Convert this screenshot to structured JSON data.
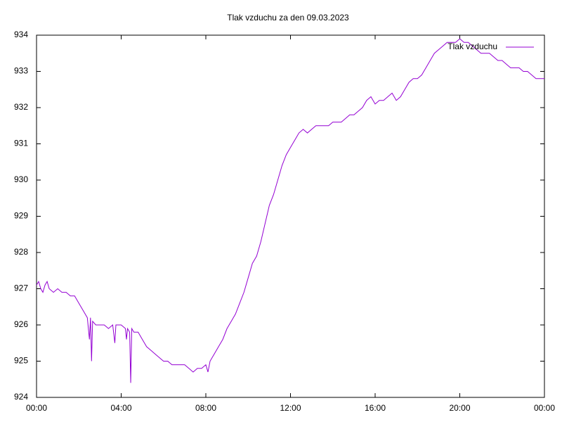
{
  "chart_data": {
    "type": "line",
    "title": "Tlak vzduchu za den 09.03.2023",
    "x": [
      0,
      0.1,
      0.2,
      0.3,
      0.4,
      0.5,
      0.6,
      0.8,
      1.0,
      1.2,
      1.4,
      1.6,
      1.8,
      2.0,
      2.2,
      2.4,
      2.5,
      2.55,
      2.6,
      2.65,
      2.8,
      3.0,
      3.2,
      3.4,
      3.6,
      3.7,
      3.75,
      4.0,
      4.2,
      4.25,
      4.3,
      4.4,
      4.45,
      4.5,
      4.6,
      4.8,
      5.0,
      5.2,
      5.4,
      5.6,
      5.8,
      6.0,
      6.2,
      6.4,
      6.6,
      6.8,
      7.0,
      7.2,
      7.4,
      7.6,
      7.8,
      8.0,
      8.1,
      8.2,
      8.4,
      8.6,
      8.8,
      9.0,
      9.2,
      9.4,
      9.6,
      9.8,
      10.0,
      10.2,
      10.4,
      10.6,
      10.8,
      11.0,
      11.2,
      11.4,
      11.6,
      11.8,
      12.0,
      12.2,
      12.4,
      12.6,
      12.8,
      13.0,
      13.2,
      13.4,
      13.6,
      13.8,
      14.0,
      14.2,
      14.4,
      14.6,
      14.8,
      15.0,
      15.2,
      15.4,
      15.6,
      15.8,
      16.0,
      16.2,
      16.4,
      16.6,
      16.8,
      17.0,
      17.2,
      17.4,
      17.6,
      17.8,
      18.0,
      18.2,
      18.4,
      18.6,
      18.8,
      19.0,
      19.2,
      19.4,
      19.6,
      19.8,
      20.0,
      20.2,
      20.4,
      20.6,
      20.8,
      21.0,
      21.2,
      21.4,
      21.6,
      21.8,
      22.0,
      22.2,
      22.4,
      22.6,
      22.8,
      23.0,
      23.2,
      23.4,
      23.6,
      23.8,
      24.0
    ],
    "series": [
      {
        "name": "Tlak vzduchu",
        "color": "#9400d3",
        "values": [
          927.1,
          927.2,
          927.0,
          926.9,
          927.1,
          927.2,
          927.0,
          926.9,
          927.0,
          926.9,
          926.9,
          926.8,
          926.8,
          926.6,
          926.4,
          926.2,
          925.6,
          926.2,
          925.0,
          926.1,
          926.0,
          926.0,
          926.0,
          925.9,
          926.0,
          925.5,
          926.0,
          926.0,
          925.9,
          925.6,
          925.9,
          925.8,
          924.4,
          925.9,
          925.8,
          925.8,
          925.6,
          925.4,
          925.3,
          925.2,
          925.1,
          925.0,
          925.0,
          924.9,
          924.9,
          924.9,
          924.9,
          924.8,
          924.7,
          924.8,
          924.8,
          924.9,
          924.7,
          925.0,
          925.2,
          925.4,
          925.6,
          925.9,
          926.1,
          926.3,
          926.6,
          926.9,
          927.3,
          927.7,
          927.9,
          928.3,
          928.8,
          929.3,
          929.6,
          930.0,
          930.4,
          930.7,
          930.9,
          931.1,
          931.3,
          931.4,
          931.3,
          931.4,
          931.5,
          931.5,
          931.5,
          931.5,
          931.6,
          931.6,
          931.6,
          931.7,
          931.8,
          931.8,
          931.9,
          932.0,
          932.2,
          932.3,
          932.1,
          932.2,
          932.2,
          932.3,
          932.4,
          932.2,
          932.3,
          932.5,
          932.7,
          932.8,
          932.8,
          932.9,
          933.1,
          933.3,
          933.5,
          933.6,
          933.7,
          933.8,
          933.8,
          933.8,
          933.9,
          933.8,
          933.8,
          933.7,
          933.6,
          933.5,
          933.5,
          933.5,
          933.4,
          933.3,
          933.3,
          933.2,
          933.1,
          933.1,
          933.1,
          933.0,
          933.0,
          932.9,
          932.8,
          932.8,
          932.8
        ]
      }
    ],
    "xlim": [
      0,
      24
    ],
    "xticks": [
      {
        "value": 0,
        "label": "00:00"
      },
      {
        "value": 4,
        "label": "04:00"
      },
      {
        "value": 8,
        "label": "08:00"
      },
      {
        "value": 12,
        "label": "12:00"
      },
      {
        "value": 16,
        "label": "16:00"
      },
      {
        "value": 20,
        "label": "20:00"
      },
      {
        "value": 24,
        "label": "00:00"
      }
    ],
    "ylim": [
      924,
      934
    ],
    "yticks": [
      924,
      925,
      926,
      927,
      928,
      929,
      930,
      931,
      932,
      933,
      934
    ],
    "legend": "top-right"
  }
}
